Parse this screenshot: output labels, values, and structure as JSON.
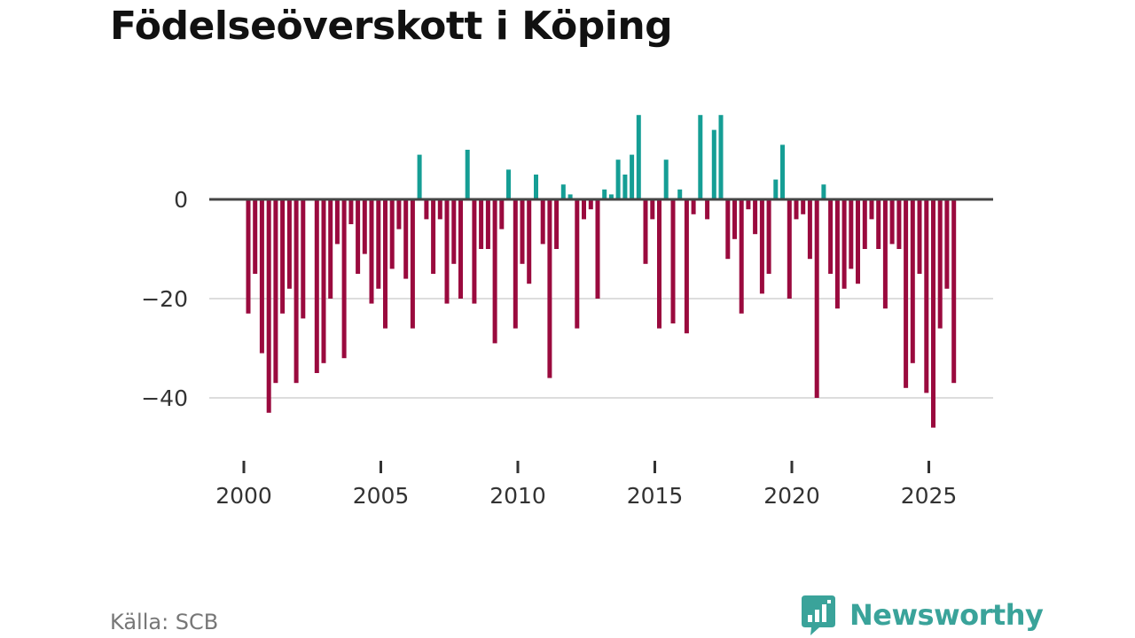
{
  "title": "Födelseöverskott i Köping",
  "source": "Källa: SCB",
  "brand": {
    "name": "Newsworthy",
    "icon": "newsworthy-logo-icon"
  },
  "colors": {
    "positive": "#159e95",
    "negative": "#9a0a3e",
    "zero_line": "#444444",
    "grid": "#dddddd",
    "brand": "#3aa39a"
  },
  "chart_data": {
    "type": "bar",
    "title": "Födelseöverskott i Köping",
    "xlabel": "",
    "ylabel": "",
    "ylim": [
      -48,
      18
    ],
    "xlim": [
      1999.4,
      2027.0
    ],
    "y_ticks": [
      0,
      -20,
      -40
    ],
    "y_tick_labels": [
      "0",
      "−20",
      "−40"
    ],
    "x_ticks": [
      2000,
      2005,
      2010,
      2015,
      2020,
      2025
    ],
    "x_tick_labels": [
      "2000",
      "2005",
      "2010",
      "2015",
      "2020",
      "2025"
    ],
    "grid": "horizontal",
    "interval": "quarterly",
    "start": 2000.0,
    "series": [
      {
        "name": "Födelseöverskott",
        "values": [
          -23,
          -15,
          -31,
          -43,
          -37,
          -23,
          -18,
          -37,
          -24,
          0,
          -35,
          -33,
          -20,
          -9,
          -32,
          -5,
          -15,
          -11,
          -21,
          -18,
          -26,
          -14,
          -6,
          -16,
          -26,
          9,
          -4,
          -15,
          -4,
          -21,
          -13,
          -20,
          10,
          -21,
          -10,
          -10,
          -29,
          -6,
          6,
          -26,
          -13,
          -17,
          5,
          -9,
          -36,
          -10,
          3,
          1,
          -26,
          -4,
          -2,
          -20,
          2,
          1,
          8,
          5,
          9,
          17,
          -13,
          -4,
          -26,
          8,
          -25,
          2,
          -27,
          -3,
          17,
          -4,
          14,
          17,
          -12,
          -8,
          -23,
          -2,
          -7,
          -19,
          -15,
          4,
          11,
          -20,
          -4,
          -3,
          -12,
          -40,
          3,
          -15,
          -22,
          -18,
          -14,
          -17,
          -10,
          -4,
          -10,
          -22,
          -9,
          -10,
          -38,
          -33,
          -15,
          -39,
          -46,
          -26,
          -18,
          -37
        ]
      }
    ]
  }
}
